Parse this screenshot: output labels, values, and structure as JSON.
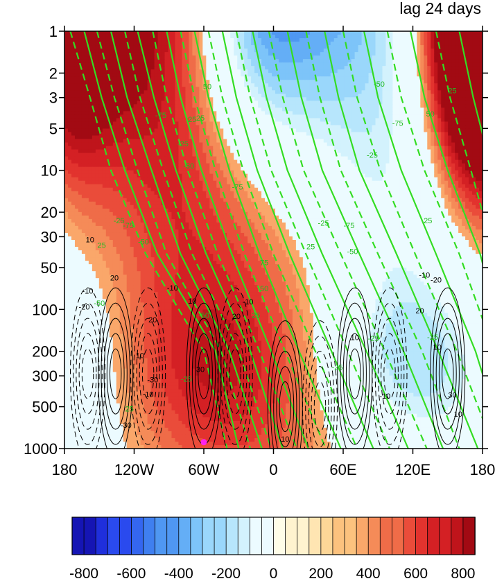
{
  "title_right": "lag 24 days",
  "colors": {
    "positive_contour": "#000000",
    "negative_contour": "#000000",
    "green_contour": "#33dd22",
    "marker": "#ff22ee",
    "palette": [
      "#1515b4",
      "#1f2fdc",
      "#2a4aee",
      "#3466f0",
      "#3f7ff0",
      "#4f97f2",
      "#64aef6",
      "#7dc4f9",
      "#9ad7fb",
      "#b7e6fc",
      "#d3f2fd",
      "#ecfbff",
      "#fffde8",
      "#fff3cf",
      "#ffe5b2",
      "#fdd697",
      "#fcc27e",
      "#faa76a",
      "#f58b58",
      "#ef6c48",
      "#ea4c3a",
      "#e2332e",
      "#d42024",
      "#bf141b",
      "#a20a13"
    ]
  },
  "chart_data": {
    "type": "heatmap",
    "title": "lag 24 days",
    "x_ticks": [
      "180",
      "120W",
      "60W",
      "0",
      "60E",
      "120E",
      "180"
    ],
    "x_values": [
      -180,
      -120,
      -60,
      0,
      60,
      120,
      180
    ],
    "y_ticks": [
      "1",
      "2",
      "3",
      "5",
      "10",
      "20",
      "30",
      "50",
      "100",
      "200",
      "300",
      "500",
      "1000"
    ],
    "y_values": [
      1,
      2,
      3,
      5,
      10,
      20,
      30,
      50,
      100,
      200,
      300,
      500,
      1000
    ],
    "y_scale": "log-reversed",
    "xlim": [
      -180,
      180
    ],
    "ylim": [
      1000,
      1
    ],
    "colorbar": {
      "tick_labels": [
        "-800",
        "-600",
        "-400",
        "-200",
        "0",
        "200",
        "400",
        "600",
        "800"
      ],
      "tick_values": [
        -800,
        -600,
        -400,
        -200,
        0,
        200,
        400,
        600,
        800
      ],
      "levels": [
        -800,
        -750,
        -700,
        -650,
        -600,
        -550,
        -500,
        -450,
        -400,
        -350,
        -300,
        -250,
        -200,
        -150,
        -100,
        -50,
        0,
        50,
        100,
        150,
        200,
        250,
        300,
        350,
        400,
        450,
        500,
        550,
        600,
        650,
        700,
        750,
        800
      ]
    },
    "black_contour_labels": [
      {
        "text": "10",
        "lon": -158,
        "p": 33
      },
      {
        "text": "20",
        "lon": -137,
        "p": 62
      },
      {
        "text": "-10",
        "lon": -160,
        "p": 77
      },
      {
        "text": "-20",
        "lon": -163,
        "p": 100
      },
      {
        "text": "-10",
        "lon": -87,
        "p": 73
      },
      {
        "text": "20",
        "lon": -104,
        "p": 124
      },
      {
        "text": "10",
        "lon": -70,
        "p": 91
      },
      {
        "text": "10",
        "lon": -115,
        "p": 224
      },
      {
        "text": "20",
        "lon": -32,
        "p": 117
      },
      {
        "text": "-10",
        "lon": -22,
        "p": 92
      },
      {
        "text": "30",
        "lon": -63,
        "p": 282
      },
      {
        "text": "-30",
        "lon": -104,
        "p": 335
      },
      {
        "text": "-10",
        "lon": -108,
        "p": 425
      },
      {
        "text": "-30",
        "lon": -127,
        "p": 708
      },
      {
        "text": "10",
        "lon": 10,
        "p": 890
      },
      {
        "text": "10",
        "lon": 70,
        "p": 166
      },
      {
        "text": "-20",
        "lon": 140,
        "p": 64
      },
      {
        "text": "-10",
        "lon": 130,
        "p": 59
      },
      {
        "text": "20",
        "lon": 126,
        "p": 107
      },
      {
        "text": "10",
        "lon": 141,
        "p": 195
      },
      {
        "text": "-10",
        "lon": 96,
        "p": 437
      },
      {
        "text": "30",
        "lon": 154,
        "p": 430
      },
      {
        "text": "10",
        "lon": 159,
        "p": 590
      }
    ],
    "green_contour_labels": [
      {
        "text": "-50",
        "lon": 91,
        "p": 2.5
      },
      {
        "text": "-75",
        "lon": 107,
        "p": 4.8
      },
      {
        "text": "-25",
        "lon": 85,
        "p": 8.1
      },
      {
        "text": "50",
        "lon": 135,
        "p": 4.1
      },
      {
        "text": "25",
        "lon": 154,
        "p": 2.8
      },
      {
        "text": "-75",
        "lon": -97,
        "p": 4.2
      },
      {
        "text": "25",
        "lon": -70,
        "p": 4.5
      },
      {
        "text": "-25",
        "lon": -78,
        "p": 6.7
      },
      {
        "text": "-50",
        "lon": -73,
        "p": 9.7
      },
      {
        "text": "50",
        "lon": -57,
        "p": 2.6
      },
      {
        "text": "25",
        "lon": -63,
        "p": 4.4
      },
      {
        "text": "-75",
        "lon": -31,
        "p": 13.8
      },
      {
        "text": "-25",
        "lon": -133,
        "p": 24
      },
      {
        "text": "-75",
        "lon": -125,
        "p": 26
      },
      {
        "text": "-50",
        "lon": -112,
        "p": 34
      },
      {
        "text": "25",
        "lon": -148,
        "p": 36
      },
      {
        "text": "-25",
        "lon": 43,
        "p": 25
      },
      {
        "text": "25",
        "lon": 32,
        "p": 37
      },
      {
        "text": "-75",
        "lon": 65,
        "p": 26
      },
      {
        "text": "-50",
        "lon": 68,
        "p": 40
      },
      {
        "text": "25",
        "lon": 133,
        "p": 24
      },
      {
        "text": "75",
        "lon": -8,
        "p": 48
      },
      {
        "text": "50",
        "lon": -8,
        "p": 74
      },
      {
        "text": "25",
        "lon": -15,
        "p": 115
      },
      {
        "text": "-50",
        "lon": -150,
        "p": 94
      },
      {
        "text": "-50",
        "lon": -60,
        "p": 115
      },
      {
        "text": "-25",
        "lon": 55,
        "p": 272
      },
      {
        "text": "-25",
        "lon": 86,
        "p": 169
      },
      {
        "text": "-25",
        "lon": 137,
        "p": 165
      },
      {
        "text": "-25",
        "lon": -75,
        "p": 330
      },
      {
        "text": "25",
        "lon": -124,
        "p": 540
      }
    ]
  },
  "marker": {
    "lon": -60,
    "p": 900
  }
}
